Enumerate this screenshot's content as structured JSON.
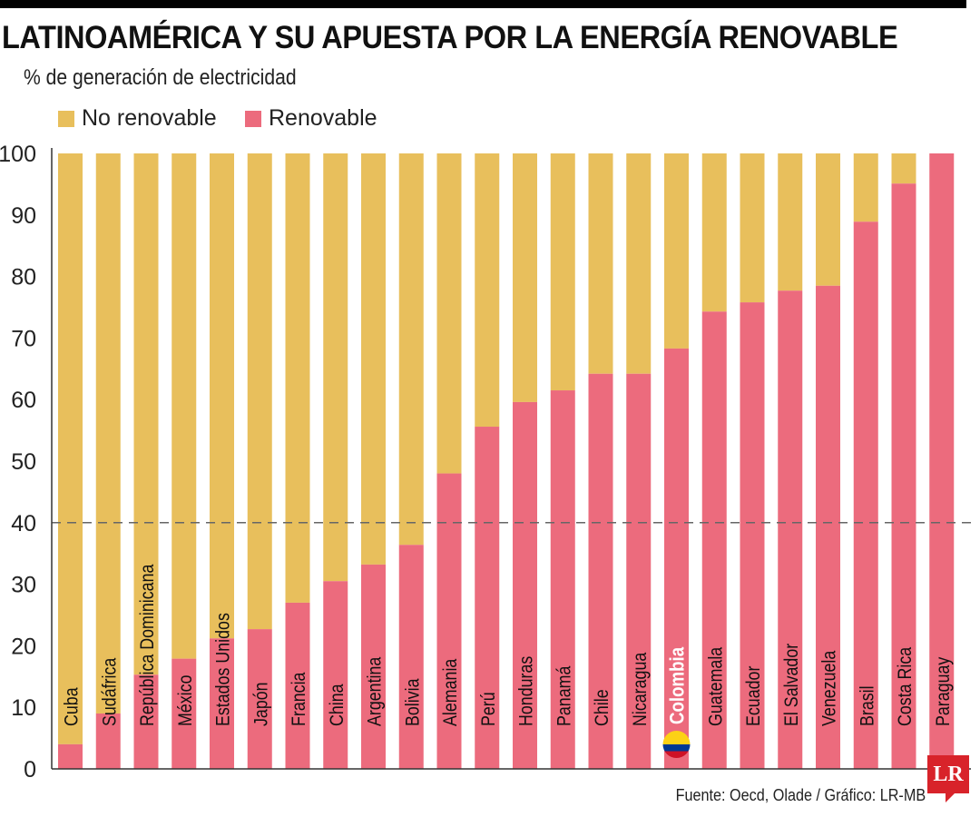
{
  "header": {
    "title": "LATINOAMÉRICA Y SU APUESTA POR LA ENERGÍA RENOVABLE",
    "subtitle": "% de generación de electricidad"
  },
  "footer": {
    "source": "Fuente: Oecd, Olade / Gráfico: LR-MB",
    "logo": "LR"
  },
  "chart_data": {
    "type": "bar",
    "stacked": true,
    "title": "LATINOAMÉRICA Y SU APUESTA POR LA ENERGÍA RENOVABLE",
    "ylabel": "% de generación de electricidad",
    "ylim": [
      0,
      100
    ],
    "yticks": [
      "0",
      "10",
      "20",
      "30",
      "40",
      "50",
      "60",
      "70",
      "80",
      "90",
      "100"
    ],
    "reference_line": 40,
    "legend_position": "top-left",
    "highlight": "Colombia",
    "colors": {
      "No renovable": "#E8BF5C",
      "Renovable": "#EC6B7D"
    },
    "categories": [
      "Cuba",
      "Sudáfrica",
      "República Dominicana",
      "México",
      "Estados Unidos",
      "Japón",
      "Francia",
      "China",
      "Argentina",
      "Bolivia",
      "Alemania",
      "Perú",
      "Honduras",
      "Panamá",
      "Chile",
      "Nicaragua",
      "Colombia",
      "Guatemala",
      "Ecuador",
      "El Salvador",
      "Venezuela",
      "Brasil",
      "Costa Rica",
      "Paraguay"
    ],
    "series": [
      {
        "name": "No renovable",
        "values": [
          96,
          91,
          84.7,
          82.1,
          78.8,
          77.3,
          73,
          69.5,
          66.8,
          63.6,
          52,
          44.4,
          40.4,
          38.5,
          35.8,
          35.8,
          31.7,
          25.7,
          24.2,
          22.3,
          21.5,
          11.1,
          4.9,
          0
        ]
      },
      {
        "name": "Renovable",
        "values": [
          4,
          9,
          15.3,
          17.9,
          21.2,
          22.7,
          27,
          30.5,
          33.2,
          36.4,
          48,
          55.6,
          59.6,
          61.5,
          64.2,
          64.2,
          68.3,
          74.3,
          75.8,
          77.7,
          78.5,
          88.9,
          95.1,
          100
        ]
      }
    ]
  }
}
